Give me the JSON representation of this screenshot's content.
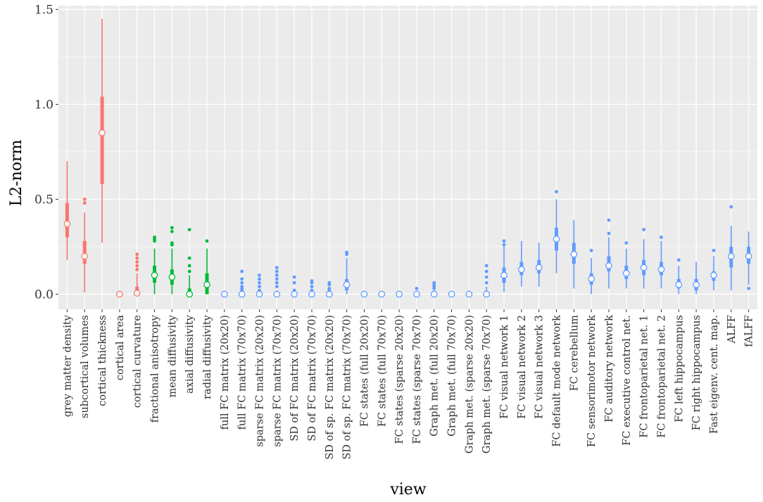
{
  "chart_data": {
    "type": "boxplot",
    "title": "",
    "xlabel": "view",
    "ylabel": "L2-norm",
    "ylim": [
      -0.08,
      1.52
    ],
    "yticks": [
      0.0,
      0.5,
      1.0,
      1.5
    ],
    "ytick_labels": [
      "0.0",
      "0.5",
      "1.0",
      "1.5"
    ],
    "grid": true,
    "legend": "none",
    "group_colors": {
      "red": "#F8766D",
      "green": "#00BA38",
      "blue": "#619CFF"
    },
    "categories": [
      "grey matter density",
      "subcortical volumes",
      "cortical thickness",
      "cortical area",
      "cortical curvature",
      "fractional anisotropy",
      "mean diffusivity",
      "axial diffusivity",
      "radial diffusivity",
      "full FC matrix (20x20)",
      "full FC matrix (70x70)",
      "sparse FC matrix (20x20)",
      "sparse FC matrix (70x70)",
      "SD of FC matrix (20x20)",
      "SD of FC matrix (70x70)",
      "SD of sp. FC matrix (20x20)",
      "SD of sp. FC matrix (70x70)",
      "FC states (full 20x20)",
      "FC states (full 70x70)",
      "FC states (sparse 20x20)",
      "FC states (sparse 70x70)",
      "Graph met. (full 20x20)",
      "Graph met. (full 70x70)",
      "Graph met. (sparse 20x20)",
      "Graph met. (sparse 70x70)",
      "FC visual network 1",
      "FC visual network 2",
      "FC visual network 3",
      "FC default mode network",
      "FC cerebellum",
      "FC sensorimotor network",
      "FC auditory network",
      "FC executive control net.",
      "FC frontoparietal net. 1",
      "FC frontoparietal net. 2",
      "FC left hippocampus",
      "FC right hippocampus",
      "Fast eigenv. cent. map.",
      "ALFF",
      "fALFF"
    ],
    "groups": [
      "red",
      "red",
      "red",
      "red",
      "red",
      "green",
      "green",
      "green",
      "green",
      "blue",
      "blue",
      "blue",
      "blue",
      "blue",
      "blue",
      "blue",
      "blue",
      "blue",
      "blue",
      "blue",
      "blue",
      "blue",
      "blue",
      "blue",
      "blue",
      "blue",
      "blue",
      "blue",
      "blue",
      "blue",
      "blue",
      "blue",
      "blue",
      "blue",
      "blue",
      "blue",
      "blue",
      "blue",
      "blue",
      "blue"
    ],
    "boxes": [
      {
        "wlo": 0.18,
        "q1": 0.3,
        "med": 0.37,
        "q3": 0.48,
        "whi": 0.7,
        "out": []
      },
      {
        "wlo": 0.01,
        "q1": 0.16,
        "med": 0.2,
        "q3": 0.28,
        "whi": 0.43,
        "out": [
          0.48,
          0.5
        ]
      },
      {
        "wlo": 0.27,
        "q1": 0.58,
        "med": 0.85,
        "q3": 1.04,
        "whi": 1.45,
        "out": []
      },
      {
        "wlo": 0.0,
        "q1": 0.0,
        "med": 0.0,
        "q3": 0.0,
        "whi": 0.0,
        "out": []
      },
      {
        "wlo": 0.0,
        "q1": 0.0,
        "med": 0.005,
        "q3": 0.04,
        "whi": 0.11,
        "out": [
          0.13,
          0.15,
          0.17,
          0.19,
          0.21
        ]
      },
      {
        "wlo": 0.0,
        "q1": 0.06,
        "med": 0.1,
        "q3": 0.15,
        "whi": 0.24,
        "out": [
          0.28,
          0.29,
          0.3
        ]
      },
      {
        "wlo": 0.0,
        "q1": 0.05,
        "med": 0.09,
        "q3": 0.13,
        "whi": 0.24,
        "out": [
          0.26,
          0.27,
          0.33,
          0.35
        ]
      },
      {
        "wlo": 0.0,
        "q1": 0.0,
        "med": 0.0,
        "q3": 0.03,
        "whi": 0.1,
        "out": [
          0.12,
          0.15,
          0.19,
          0.34
        ]
      },
      {
        "wlo": 0.0,
        "q1": 0.0,
        "med": 0.05,
        "q3": 0.11,
        "whi": 0.24,
        "out": [
          0.28
        ]
      },
      {
        "wlo": 0.0,
        "q1": 0.0,
        "med": 0.0,
        "q3": 0.0,
        "whi": 0.0,
        "out": []
      },
      {
        "wlo": 0.0,
        "q1": 0.0,
        "med": 0.0,
        "q3": 0.0,
        "whi": 0.01,
        "out": [
          0.02,
          0.03,
          0.04,
          0.06,
          0.08,
          0.12
        ]
      },
      {
        "wlo": 0.0,
        "q1": 0.0,
        "med": 0.0,
        "q3": 0.0,
        "whi": 0.01,
        "out": [
          0.02,
          0.04,
          0.06,
          0.08,
          0.1
        ]
      },
      {
        "wlo": 0.0,
        "q1": 0.0,
        "med": 0.0,
        "q3": 0.0,
        "whi": 0.02,
        "out": [
          0.04,
          0.06,
          0.08,
          0.1,
          0.12,
          0.14
        ]
      },
      {
        "wlo": 0.0,
        "q1": 0.0,
        "med": 0.0,
        "q3": 0.0,
        "whi": 0.0,
        "out": [
          0.02,
          0.06,
          0.09
        ]
      },
      {
        "wlo": 0.0,
        "q1": 0.0,
        "med": 0.0,
        "q3": 0.0,
        "whi": 0.01,
        "out": [
          0.02,
          0.04,
          0.06,
          0.07
        ]
      },
      {
        "wlo": 0.0,
        "q1": 0.0,
        "med": 0.0,
        "q3": 0.0,
        "whi": 0.01,
        "out": [
          0.02,
          0.03,
          0.05,
          0.06
        ]
      },
      {
        "wlo": 0.0,
        "q1": 0.02,
        "med": 0.05,
        "q3": 0.08,
        "whi": 0.19,
        "out": [
          0.21,
          0.22
        ]
      },
      {
        "wlo": 0.0,
        "q1": 0.0,
        "med": 0.0,
        "q3": 0.0,
        "whi": 0.0,
        "out": []
      },
      {
        "wlo": 0.0,
        "q1": 0.0,
        "med": 0.0,
        "q3": 0.0,
        "whi": 0.0,
        "out": []
      },
      {
        "wlo": 0.0,
        "q1": 0.0,
        "med": 0.0,
        "q3": 0.0,
        "whi": 0.0,
        "out": []
      },
      {
        "wlo": 0.0,
        "q1": 0.0,
        "med": 0.0,
        "q3": 0.0,
        "whi": 0.0,
        "out": [
          0.03
        ]
      },
      {
        "wlo": 0.0,
        "q1": 0.0,
        "med": 0.0,
        "q3": 0.0,
        "whi": 0.02,
        "out": [
          0.03,
          0.04,
          0.05,
          0.06
        ]
      },
      {
        "wlo": 0.0,
        "q1": 0.0,
        "med": 0.0,
        "q3": 0.0,
        "whi": 0.0,
        "out": []
      },
      {
        "wlo": 0.0,
        "q1": 0.0,
        "med": 0.0,
        "q3": 0.0,
        "whi": 0.0,
        "out": []
      },
      {
        "wlo": 0.0,
        "q1": 0.0,
        "med": 0.0,
        "q3": 0.01,
        "whi": 0.04,
        "out": [
          0.06,
          0.09,
          0.12,
          0.15
        ]
      },
      {
        "wlo": 0.01,
        "q1": 0.06,
        "med": 0.1,
        "q3": 0.14,
        "whi": 0.25,
        "out": [
          0.26,
          0.28
        ]
      },
      {
        "wlo": 0.04,
        "q1": 0.1,
        "med": 0.13,
        "q3": 0.17,
        "whi": 0.28,
        "out": []
      },
      {
        "wlo": 0.04,
        "q1": 0.11,
        "med": 0.14,
        "q3": 0.18,
        "whi": 0.27,
        "out": []
      },
      {
        "wlo": 0.11,
        "q1": 0.23,
        "med": 0.29,
        "q3": 0.35,
        "whi": 0.5,
        "out": [
          0.54
        ]
      },
      {
        "wlo": 0.03,
        "q1": 0.16,
        "med": 0.21,
        "q3": 0.27,
        "whi": 0.39,
        "out": []
      },
      {
        "wlo": 0.0,
        "q1": 0.05,
        "med": 0.08,
        "q3": 0.11,
        "whi": 0.19,
        "out": [
          0.23
        ]
      },
      {
        "wlo": 0.03,
        "q1": 0.12,
        "med": 0.15,
        "q3": 0.2,
        "whi": 0.3,
        "out": [
          0.32,
          0.39
        ]
      },
      {
        "wlo": 0.03,
        "q1": 0.08,
        "med": 0.11,
        "q3": 0.15,
        "whi": 0.24,
        "out": [
          0.27
        ]
      },
      {
        "wlo": 0.03,
        "q1": 0.1,
        "med": 0.14,
        "q3": 0.18,
        "whi": 0.29,
        "out": [
          0.34
        ]
      },
      {
        "wlo": 0.03,
        "q1": 0.1,
        "med": 0.13,
        "q3": 0.17,
        "whi": 0.28,
        "out": [
          0.3
        ]
      },
      {
        "wlo": 0.0,
        "q1": 0.03,
        "med": 0.05,
        "q3": 0.08,
        "whi": 0.15,
        "out": [
          0.18
        ]
      },
      {
        "wlo": 0.0,
        "q1": 0.02,
        "med": 0.05,
        "q3": 0.08,
        "whi": 0.17,
        "out": []
      },
      {
        "wlo": 0.02,
        "q1": 0.07,
        "med": 0.1,
        "q3": 0.12,
        "whi": 0.2,
        "out": [
          0.23
        ]
      },
      {
        "wlo": 0.02,
        "q1": 0.14,
        "med": 0.2,
        "q3": 0.25,
        "whi": 0.36,
        "out": [
          0.46
        ]
      },
      {
        "wlo": 0.05,
        "q1": 0.16,
        "med": 0.2,
        "q3": 0.25,
        "whi": 0.33,
        "out": [
          0.03
        ]
      }
    ]
  }
}
